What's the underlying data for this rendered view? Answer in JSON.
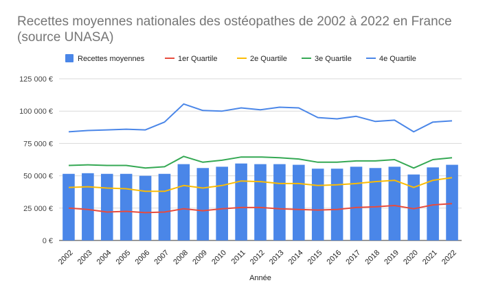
{
  "chart_data": {
    "type": "bar",
    "title": "Recettes moyennes nationales des ostéopathes de 2002 à 2022 en France (source UNASA)",
    "xlabel": "Année",
    "ylabel": "",
    "ylim": [
      0,
      125000
    ],
    "y_ticks": [
      "0 €",
      "25 000 €",
      "50 000 €",
      "75 000 €",
      "100 000 €",
      "125 000 €"
    ],
    "y_tick_values": [
      0,
      25000,
      50000,
      75000,
      100000,
      125000
    ],
    "grid": true,
    "legend_position": "top",
    "categories": [
      "2002",
      "2003",
      "2004",
      "2005",
      "2006",
      "2007",
      "2008",
      "2009",
      "2010",
      "2011",
      "2012",
      "2013",
      "2014",
      "2015",
      "2016",
      "2017",
      "2018",
      "2019",
      "2020",
      "2021",
      "2022"
    ],
    "series": [
      {
        "name": "Recettes moyennes",
        "kind": "bar",
        "color": "#4a86e8",
        "values": [
          51500,
          52000,
          51500,
          51500,
          50000,
          51500,
          59000,
          56000,
          57000,
          59500,
          59000,
          59000,
          58500,
          55500,
          55500,
          57000,
          56000,
          57000,
          51000,
          56500,
          58500
        ]
      },
      {
        "name": "1er Quartile",
        "kind": "line",
        "color": "#e84b3c",
        "values": [
          25000,
          24000,
          22000,
          22500,
          21500,
          22000,
          24500,
          23000,
          24500,
          25500,
          25500,
          24500,
          24000,
          23500,
          24000,
          25500,
          26000,
          27000,
          24500,
          27500,
          28500
        ]
      },
      {
        "name": "2e Quartile",
        "kind": "line",
        "color": "#fbbc04",
        "values": [
          41000,
          41500,
          40500,
          40000,
          38000,
          38000,
          42500,
          40500,
          42500,
          46000,
          45500,
          44000,
          44000,
          42500,
          43000,
          44000,
          45500,
          46500,
          41000,
          46500,
          48500
        ]
      },
      {
        "name": "3e Quartile",
        "kind": "line",
        "color": "#34a853",
        "values": [
          58000,
          58500,
          58000,
          58000,
          56000,
          57000,
          65000,
          60500,
          62000,
          64500,
          64500,
          64000,
          63000,
          60500,
          60500,
          61500,
          61500,
          62500,
          56000,
          62500,
          64000
        ]
      },
      {
        "name": "4e Quartile",
        "kind": "line",
        "color": "#4a86e8",
        "values": [
          84000,
          85000,
          85500,
          86000,
          85500,
          91500,
          105500,
          100500,
          100000,
          102500,
          101000,
          103000,
          102500,
          95000,
          94000,
          96000,
          92000,
          93000,
          84000,
          91500,
          92500
        ]
      }
    ]
  }
}
